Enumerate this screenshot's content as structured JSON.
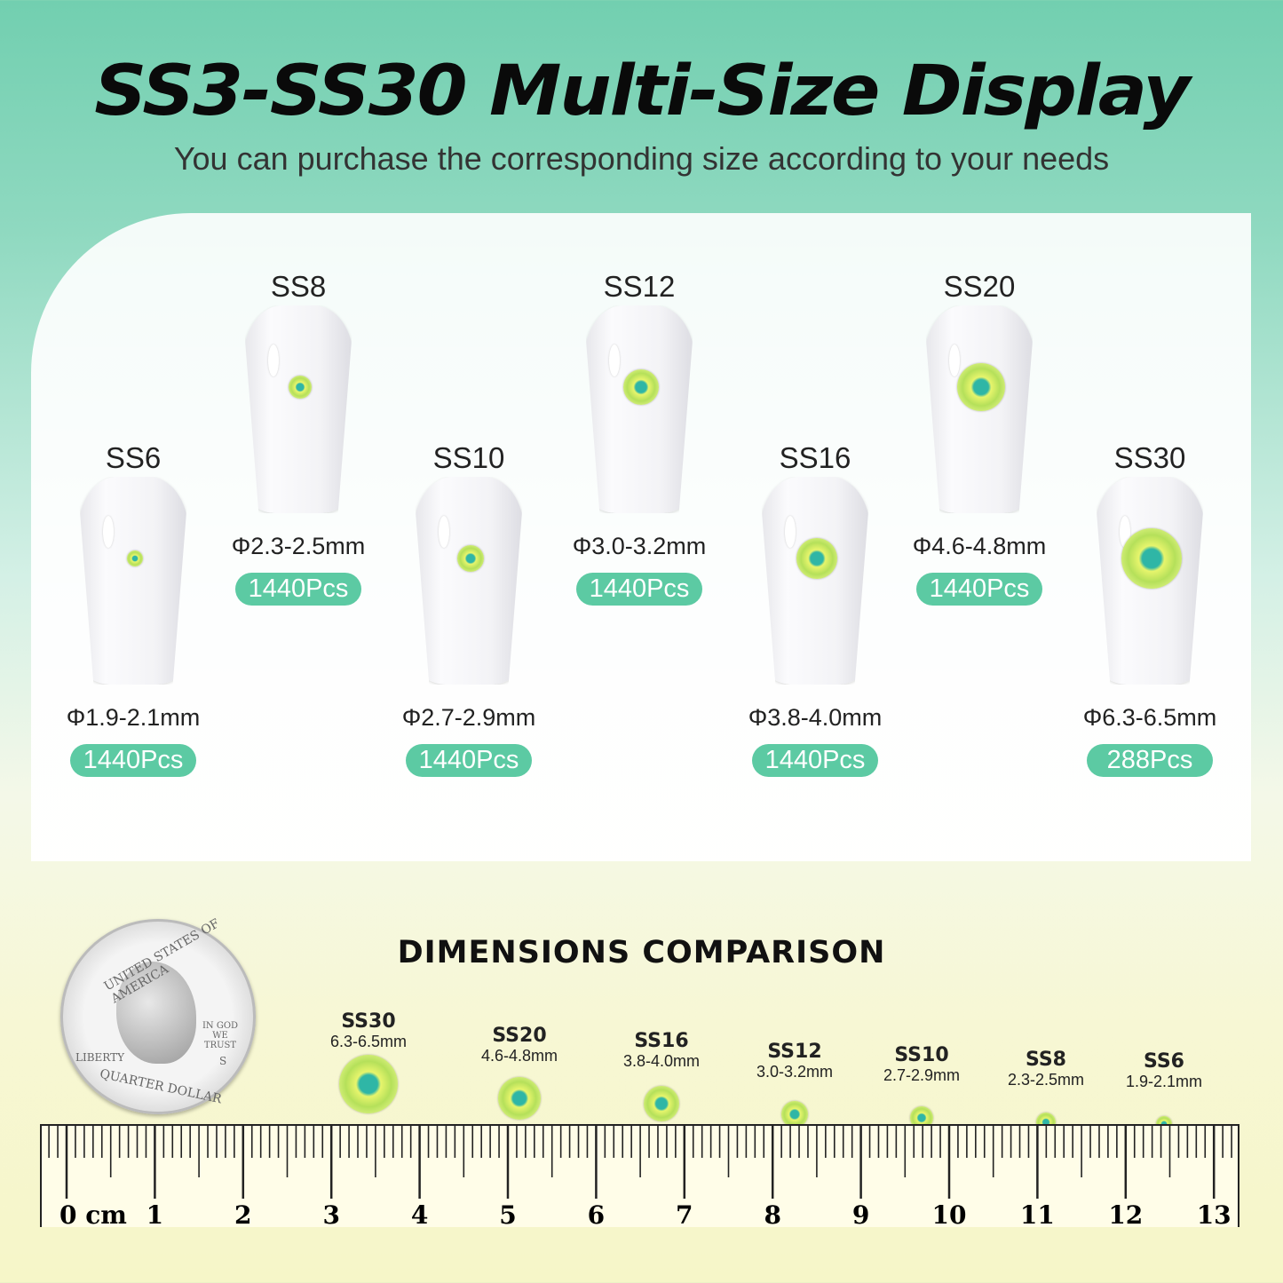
{
  "title": "SS3-SS30 Multi-Size Display",
  "subtitle": "You can purchase the corresponding size according to your needs",
  "nails": [
    {
      "size": "SS6",
      "diameter": "Φ1.9-2.1mm",
      "qty": "1440Pcs"
    },
    {
      "size": "SS8",
      "diameter": "Φ2.3-2.5mm",
      "qty": "1440Pcs"
    },
    {
      "size": "SS10",
      "diameter": "Φ2.7-2.9mm",
      "qty": "1440Pcs"
    },
    {
      "size": "SS12",
      "diameter": "Φ3.0-3.2mm",
      "qty": "1440Pcs"
    },
    {
      "size": "SS16",
      "diameter": "Φ3.8-4.0mm",
      "qty": "1440Pcs"
    },
    {
      "size": "SS20",
      "diameter": "Φ4.6-4.8mm",
      "qty": "1440Pcs"
    },
    {
      "size": "SS30",
      "diameter": "Φ6.3-6.5mm",
      "qty": "288Pcs"
    }
  ],
  "comparison": {
    "title": "DIMENSIONS COMPARISON",
    "coin_text": [
      "UNITED STATES OF AMERICA",
      "LIBERTY",
      "IN GOD WE TRUST",
      "QUARTER DOLLAR",
      "S"
    ],
    "gems": [
      {
        "size": "SS30",
        "mm": "6.3-6.5mm"
      },
      {
        "size": "SS20",
        "mm": "4.6-4.8mm"
      },
      {
        "size": "SS16",
        "mm": "3.8-4.0mm"
      },
      {
        "size": "SS12",
        "mm": "3.0-3.2mm"
      },
      {
        "size": "SS10",
        "mm": "2.7-2.9mm"
      },
      {
        "size": "SS8",
        "mm": "2.3-2.5mm"
      },
      {
        "size": "SS6",
        "mm": "1.9-2.1mm"
      }
    ],
    "ruler_labels": [
      "0 cm",
      "1",
      "2",
      "3",
      "4",
      "5",
      "6",
      "7",
      "8",
      "9",
      "10",
      "11",
      "12",
      "13"
    ]
  },
  "colors": {
    "badge": "#5ccaa3",
    "gem_center": "#2fb6a6",
    "gem_ring": "#d5ef7a"
  }
}
